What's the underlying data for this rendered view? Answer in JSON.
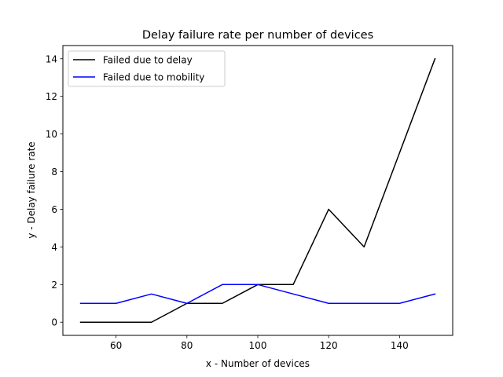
{
  "chart_data": {
    "type": "line",
    "title": "Delay failure rate per number of devices",
    "xlabel": "x - Number of devices",
    "ylabel": "y - Delay failure rate",
    "x": [
      50,
      60,
      70,
      80,
      90,
      100,
      110,
      120,
      130,
      140,
      150
    ],
    "series": [
      {
        "name": "Failed due to delay",
        "color": "#000000",
        "values": [
          0,
          0,
          0,
          1,
          1,
          2,
          2,
          6,
          4,
          9,
          14
        ]
      },
      {
        "name": "Failed due to mobility",
        "color": "#0000ff",
        "values": [
          1,
          1,
          1.5,
          1,
          2,
          2,
          1.5,
          1,
          1,
          1,
          1.5
        ]
      }
    ],
    "xlim": [
      45,
      155
    ],
    "ylim": [
      -0.7,
      14.7
    ],
    "xticks": [
      60,
      80,
      100,
      120,
      140
    ],
    "yticks": [
      0,
      2,
      4,
      6,
      8,
      10,
      12,
      14
    ],
    "grid": false,
    "legend_position": "top-left"
  }
}
